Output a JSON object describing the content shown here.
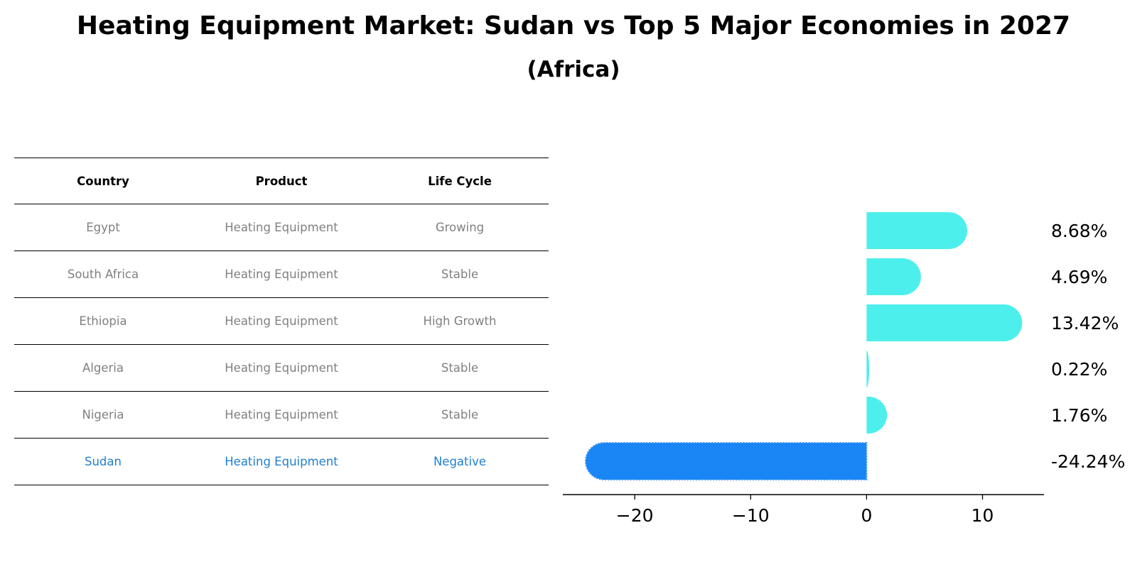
{
  "colors": {
    "positive": "#4cefeb",
    "highlight": "#1a85f5",
    "highlight_text": "#1f7fd1",
    "muted_text": "#808080"
  },
  "table": {
    "headers": [
      "Country",
      "Product",
      "Life Cycle"
    ],
    "rows": [
      {
        "country": "Egypt",
        "product": "Heating Equipment",
        "life_cycle": "Growing"
      },
      {
        "country": "South Africa",
        "product": "Heating Equipment",
        "life_cycle": "Stable"
      },
      {
        "country": "Ethiopia",
        "product": "Heating Equipment",
        "life_cycle": "High Growth"
      },
      {
        "country": "Algeria",
        "product": "Heating Equipment",
        "life_cycle": "Stable"
      },
      {
        "country": "Nigeria",
        "product": "Heating Equipment",
        "life_cycle": "Stable"
      },
      {
        "country": "Sudan",
        "product": "Heating Equipment",
        "life_cycle": "Negative"
      }
    ]
  },
  "chart_data": {
    "type": "bar",
    "orientation": "horizontal",
    "title": "Heating Equipment Market: Sudan vs Top 5 Major Economies in 2027",
    "subtitle": "(Africa)",
    "categories": [
      "Egypt",
      "South Africa",
      "Ethiopia",
      "Algeria",
      "Nigeria",
      "Sudan"
    ],
    "values": [
      8.68,
      4.69,
      13.42,
      0.22,
      1.76,
      -24.24
    ],
    "value_labels": [
      "8.68%",
      "4.69%",
      "13.42%",
      "0.22%",
      "1.76%",
      "-24.24%"
    ],
    "highlight": "Sudan",
    "xlim": [
      -26.2,
      15.3
    ],
    "xticks": [
      -20,
      -10,
      0,
      10
    ],
    "xtick_labels": [
      "−20",
      "−10",
      "0",
      "10"
    ],
    "xlabel": "",
    "ylabel": "",
    "grid": false
  }
}
